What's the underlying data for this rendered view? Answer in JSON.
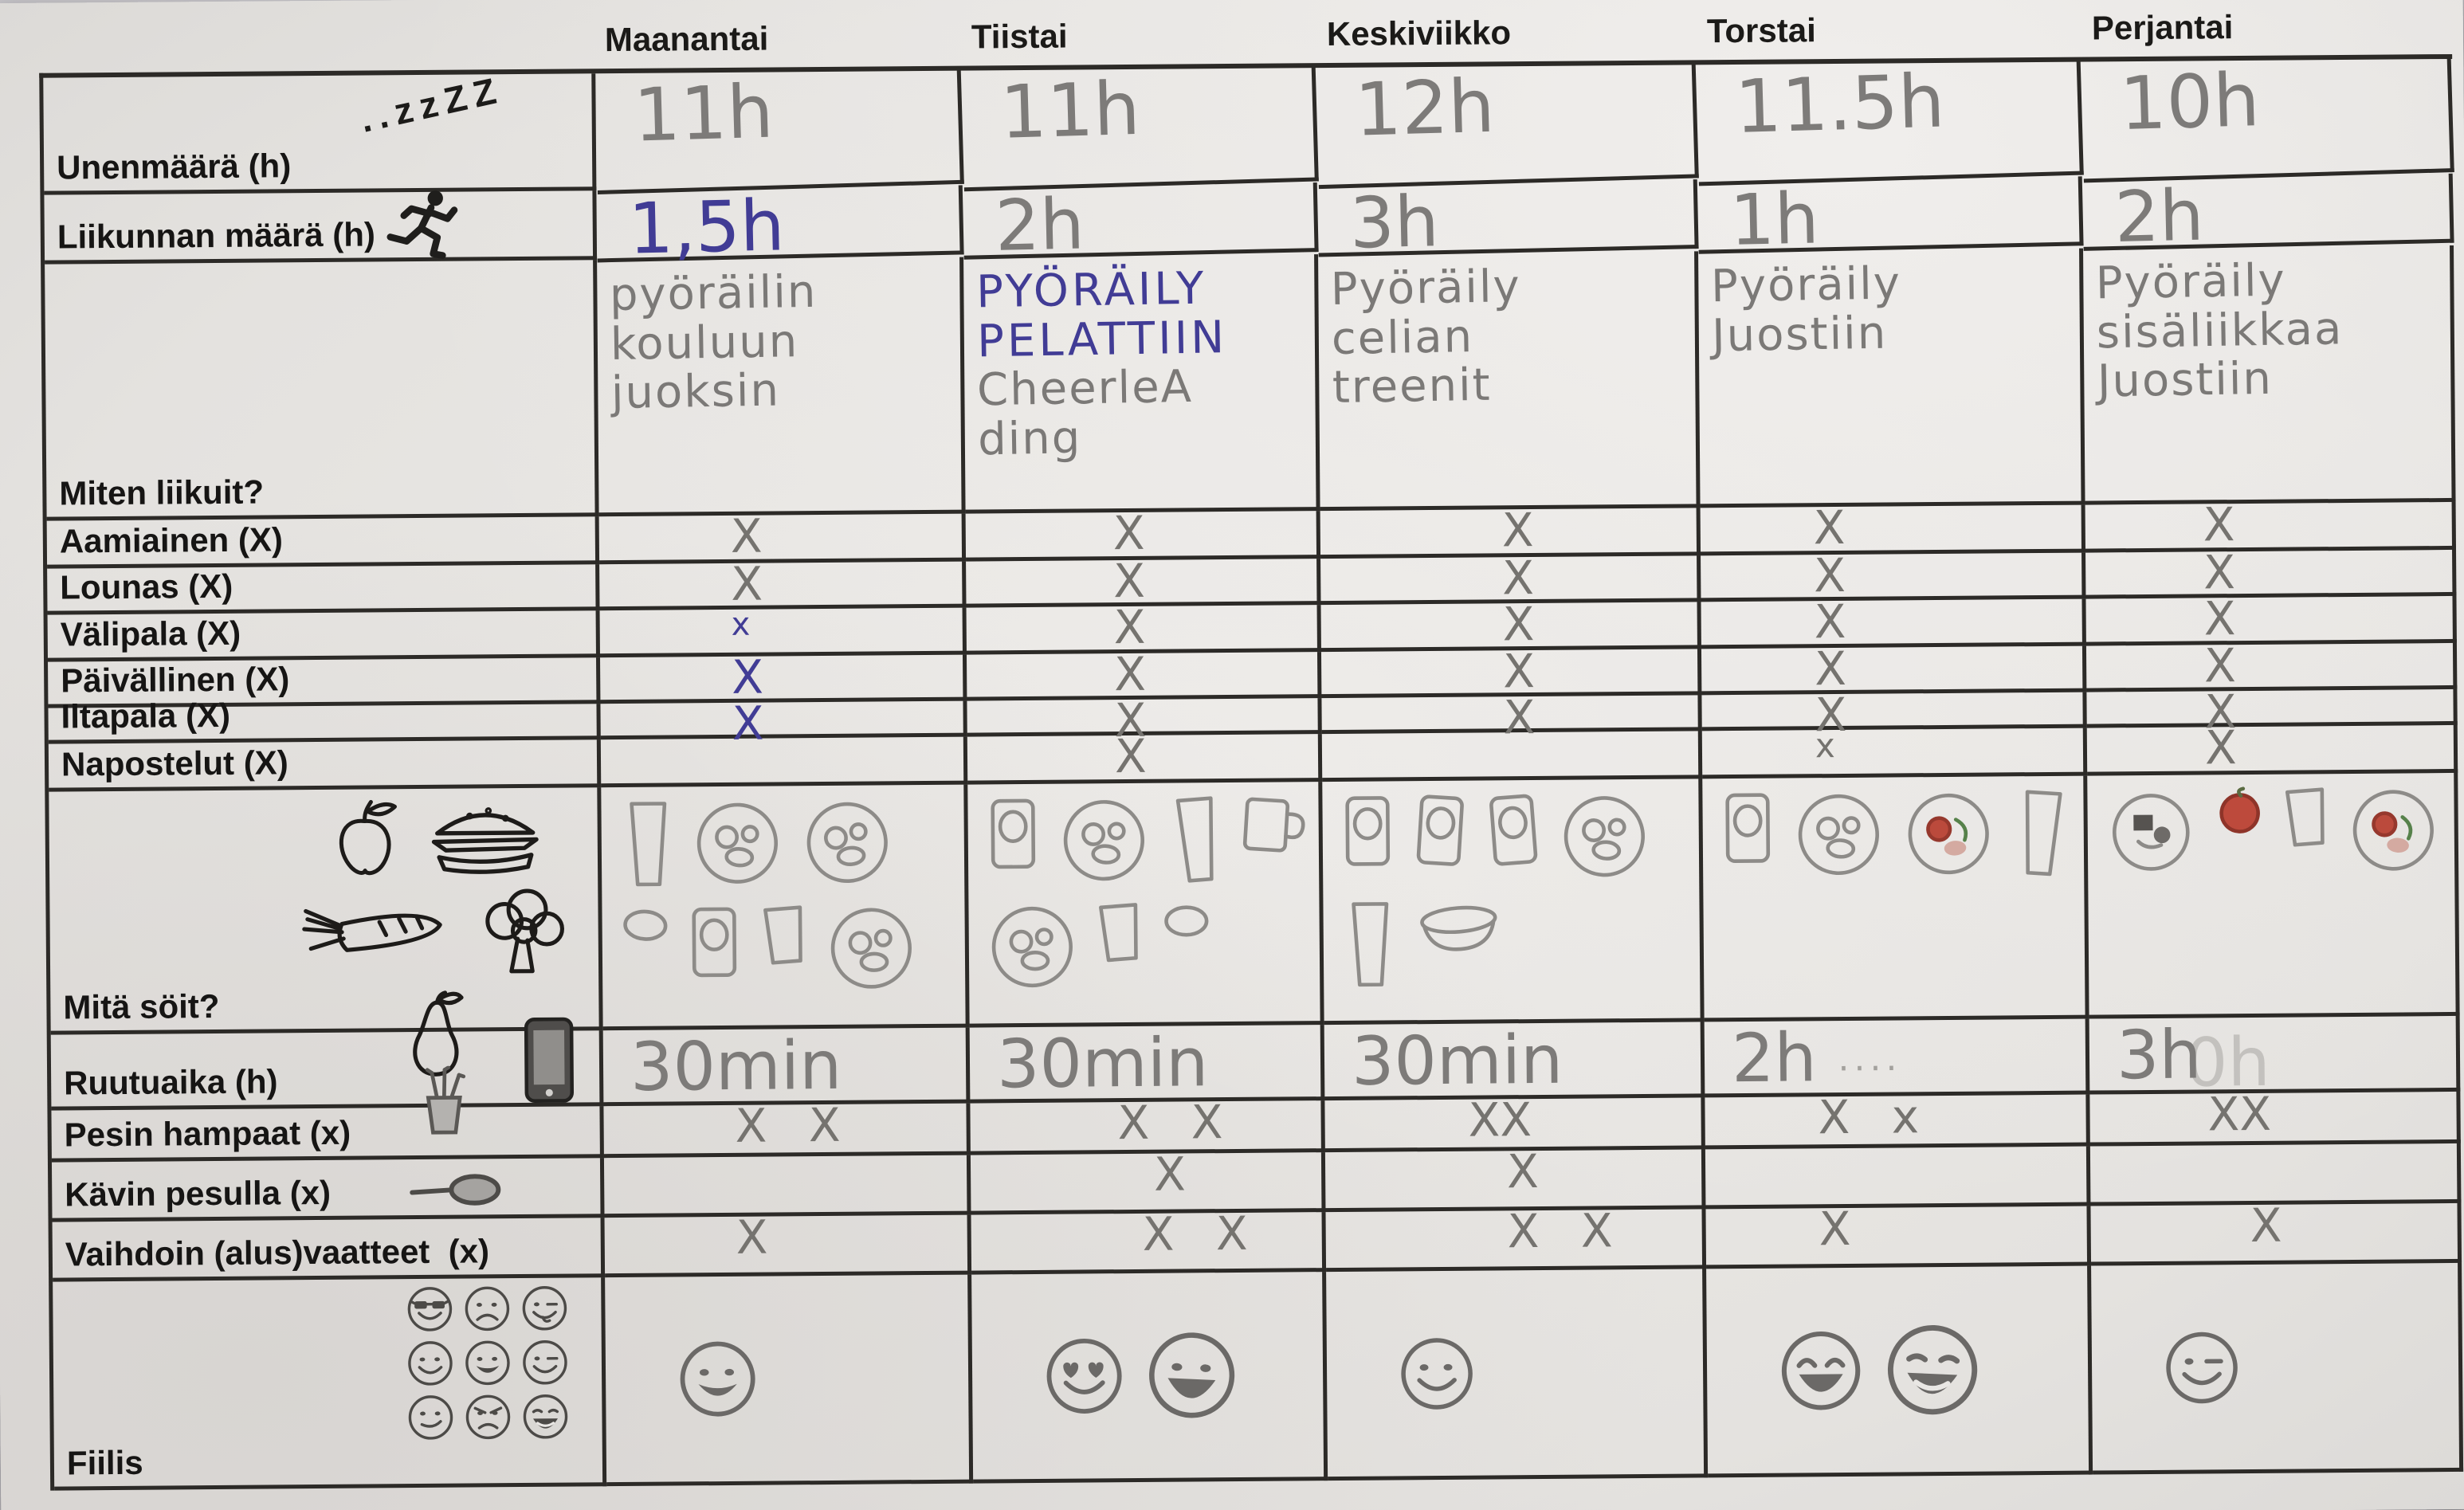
{
  "table": {
    "labels": {
      "sleep": "Unenmäärä (h)",
      "exercise": "Liikunnan määrä (h)",
      "how": "Miten liikuit?",
      "breakfast": "Aamiainen (X)",
      "lunch": "Lounas (X)",
      "snack": "Välipala (X)",
      "dinner": "Päivällinen (X)",
      "evening": "Iltapala (X)",
      "nibble": "Napostelut (X)",
      "food": "Mitä söit?",
      "screen": "Ruutuaika (h)",
      "teeth": "Pesin hampaat (x)",
      "wash": "Kävin pesulla (x)",
      "clothes": "Vaihdoin (alus)vaatteet  (x)",
      "mood": "Fiilis"
    },
    "icons": {
      "sleep": "zzz",
      "exercise": "runner",
      "screen": "smartphone",
      "teeth": "toothbrush-cup",
      "wash": "hand-mirror",
      "food_legend": [
        "apple",
        "hamburger",
        "carrot",
        "broccoli",
        "pear"
      ],
      "mood_legend": [
        "sunglasses",
        "frown",
        "wink-tongue",
        "smile",
        "grin",
        "wink",
        "smirk",
        "angry",
        "laugh-open"
      ]
    },
    "days": [
      {
        "name": "Maanantai",
        "sleep": "11h",
        "exercise": "1,5h",
        "moved_pen": "",
        "moved_pencil": "pyöräilin\nkouluun\njuoksin",
        "meals": {
          "breakfast": "X",
          "lunch": "X",
          "snack": "x",
          "dinner": "X",
          "evening": "X",
          "nibble": ""
        },
        "food_items": [
          "glass",
          "plate",
          "plate",
          "snack",
          "carton",
          "cup",
          "plate"
        ],
        "screen": "30min",
        "screen_note": "",
        "screen_ghost": "",
        "teeth": "X X",
        "wash": "",
        "clothes": "X",
        "mood": [
          "grin"
        ]
      },
      {
        "name": "Tiistai",
        "sleep": "11h",
        "exercise": "2h",
        "moved_pen": "PYÖRÄILY\nPELATTIIN",
        "moved_pencil": "CheerleA\nding",
        "meals": {
          "breakfast": "X",
          "lunch": "X",
          "snack": "X",
          "dinner": "X",
          "evening": "X",
          "nibble": "X"
        },
        "food_items": [
          "carton",
          "plate",
          "glass",
          "mug",
          "plate",
          "cup",
          "snack"
        ],
        "screen": "30min",
        "screen_note": "",
        "screen_ghost": "",
        "teeth": "X X",
        "wash": "X",
        "clothes": "X X",
        "mood": [
          "heart-eyes",
          "big-grin"
        ]
      },
      {
        "name": "Keskiviikko",
        "sleep": "12h",
        "exercise": "3h",
        "moved_pen": "",
        "moved_pencil": "Pyöräily\ncelian\ntreenit",
        "meals": {
          "breakfast": "X",
          "lunch": "X",
          "snack": "X",
          "dinner": "X",
          "evening": "X",
          "nibble": ""
        },
        "food_items": [
          "carton",
          "carton",
          "carton",
          "plate",
          "glass",
          "bowl"
        ],
        "screen": "30min",
        "screen_note": "",
        "screen_ghost": "",
        "teeth": "XX",
        "wash": "X",
        "clothes": "X X",
        "mood": [
          "smile"
        ]
      },
      {
        "name": "Torstai",
        "sleep": "11.5h",
        "exercise": "1h",
        "moved_pen": "",
        "moved_pencil": "Pyöräily\nJuostiin",
        "meals": {
          "breakfast": "X",
          "lunch": "X",
          "snack": "X",
          "dinner": "X",
          "evening": "X",
          "nibble": "x"
        },
        "food_items": [
          "carton",
          "plate",
          "plate-red",
          "glass"
        ],
        "screen": "2h",
        "screen_note": "····",
        "screen_ghost": "",
        "teeth": "X x",
        "wash": "",
        "clothes": "X",
        "mood": [
          "laugh-closed",
          "laugh-open"
        ]
      },
      {
        "name": "Perjantai",
        "sleep": "10h",
        "exercise": "2h",
        "moved_pen": "",
        "moved_pencil": "Pyöräily\nsisäliikkaa\nJuostiin",
        "meals": {
          "breakfast": "X",
          "lunch": "X",
          "snack": "X",
          "dinner": "X",
          "evening": "X",
          "nibble": "X"
        },
        "food_items": [
          "plate-dark",
          "tomato",
          "cup",
          "plate-red"
        ],
        "screen": "3h",
        "screen_note": "",
        "screen_ghost": "0h",
        "teeth": "XX",
        "wash": "",
        "clothes": "X",
        "mood": [
          "wink"
        ]
      }
    ],
    "colors": {
      "pencil": "#7a7876",
      "blue_pen": "#413c95",
      "printed": "#161514",
      "table_line": "#2c2a27",
      "paper": "#e7e5e2"
    }
  }
}
